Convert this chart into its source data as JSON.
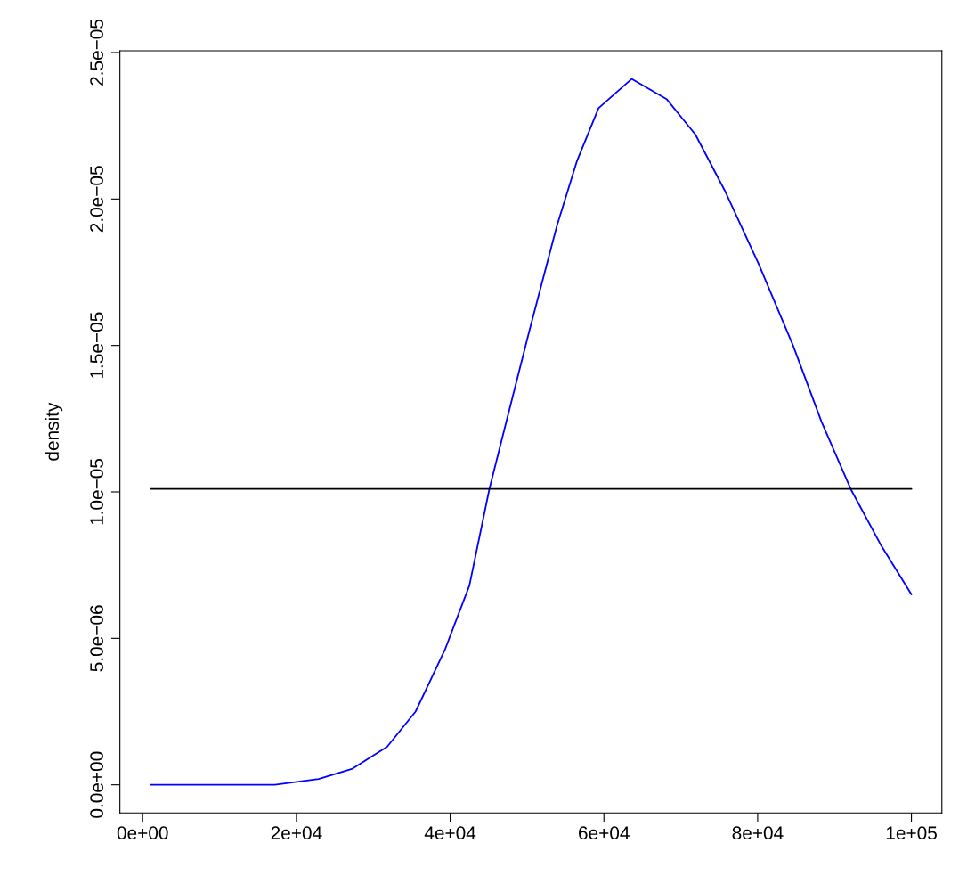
{
  "chart_data": {
    "type": "line",
    "ylabel": "density",
    "series": [
      {
        "color": "#0000ff",
        "x": [
          1000,
          17200,
          22900,
          27300,
          31800,
          35500,
          39300,
          42500,
          45100,
          47500,
          50300,
          53900,
          56500,
          59300,
          63600,
          68200,
          71900,
          75700,
          80100,
          84600,
          88300,
          92100,
          96000,
          100000
        ],
        "values": [
          0.0,
          0.0,
          2e-07,
          5.5e-07,
          1.3e-06,
          2.5e-06,
          4.6e-06,
          6.8e-06,
          1.01e-05,
          1.26e-05,
          1.55e-05,
          1.91e-05,
          2.13e-05,
          2.31e-05,
          2.41e-05,
          2.34e-05,
          2.22e-05,
          2.03e-05,
          1.78e-05,
          1.5e-05,
          1.24e-05,
          1.01e-05,
          8.2e-06,
          6.5e-06
        ]
      },
      {
        "color": "#000000",
        "x": [
          1000,
          100000
        ],
        "values": [
          1.01e-05,
          1.01e-05
        ]
      }
    ],
    "xlim": [
      -2960,
      103960
    ],
    "ylim": [
      -9.6e-07,
      2.506e-05
    ],
    "xticks": [
      {
        "value": 0,
        "label": "0e+00"
      },
      {
        "value": 20000,
        "label": "2e+04"
      },
      {
        "value": 40000,
        "label": "4e+04"
      },
      {
        "value": 60000,
        "label": "6e+04"
      },
      {
        "value": 80000,
        "label": "8e+04"
      },
      {
        "value": 100000,
        "label": "1e+05"
      }
    ],
    "yticks": [
      {
        "value": 0,
        "label": "0.0e+00"
      },
      {
        "value": 5e-06,
        "label": "5.0e−06"
      },
      {
        "value": 1e-05,
        "label": "1.0e−05"
      },
      {
        "value": 1.5e-05,
        "label": "1.5e−05"
      },
      {
        "value": 2e-05,
        "label": "2.0e−05"
      },
      {
        "value": 2.5e-05,
        "label": "2.5e−05"
      }
    ],
    "grid": false
  }
}
